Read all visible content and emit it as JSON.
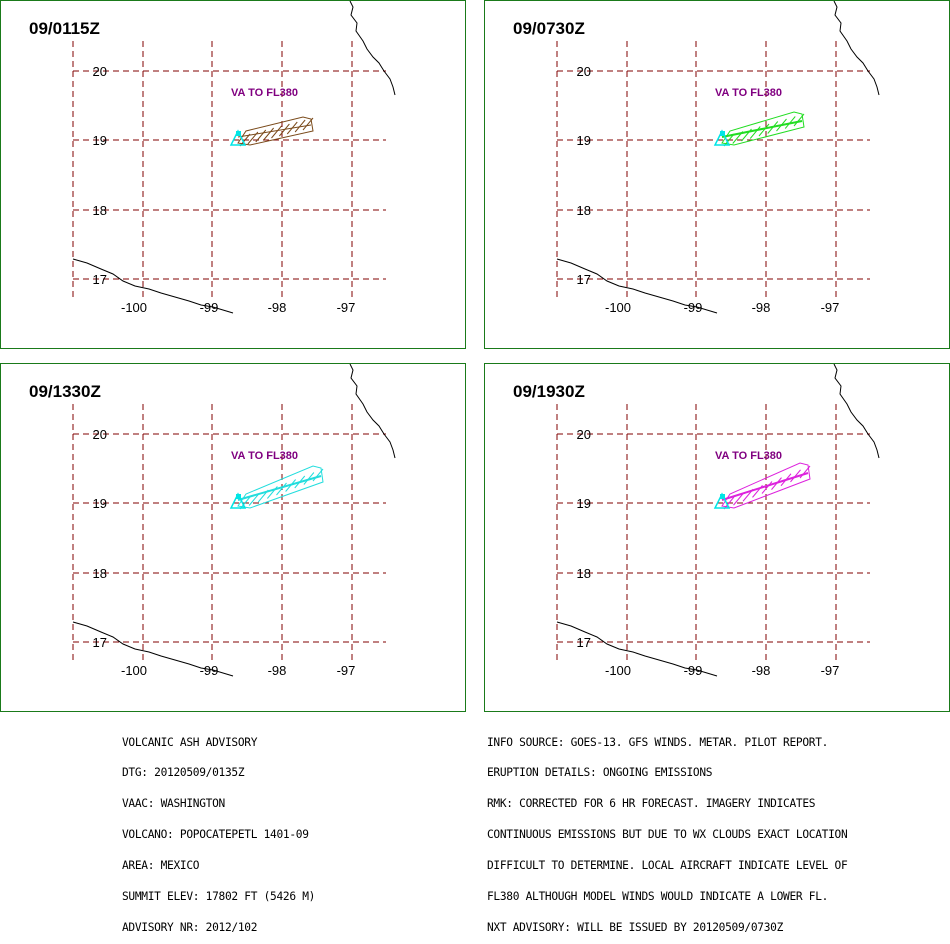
{
  "colors": {
    "frame": "#1a7a1a",
    "grid": "#800000",
    "coast": "#000000",
    "label_va": "#800080",
    "volcano": "#00e5e5"
  },
  "axes": {
    "lat_labels": [
      "20",
      "19",
      "18",
      "17"
    ],
    "lon_labels": [
      "-100",
      "-99",
      "-98",
      "-97"
    ]
  },
  "panels": [
    {
      "time": "09/0115Z",
      "label": "VA TO FL380",
      "plume_color": "#7a4a1a"
    },
    {
      "time": "09/0730Z",
      "label": "VA TO FL380",
      "plume_color": "#22dd22"
    },
    {
      "time": "09/1330Z",
      "label": "VA TO FL380",
      "plume_color": "#22dddd"
    },
    {
      "time": "09/1930Z",
      "label": "VA TO FL380",
      "plume_color": "#dd22dd"
    }
  ],
  "advisory_left": [
    "VOLCANIC ASH ADVISORY",
    "DTG: 20120509/0135Z",
    "VAAC: WASHINGTON",
    "VOLCANO: POPOCATEPETL 1401-09",
    "AREA: MEXICO",
    "SUMMIT ELEV: 17802 FT (5426 M)",
    "ADVISORY NR: 2012/102"
  ],
  "advisory_right": [
    "INFO SOURCE: GOES-13. GFS WINDS. METAR. PILOT REPORT.",
    "ERUPTION DETAILS: ONGOING EMISSIONS",
    "RMK: CORRECTED FOR 6 HR FORECAST. IMAGERY INDICATES",
    "CONTINUOUS EMISSIONS BUT DUE TO WX CLOUDS EXACT LOCATION",
    "DIFFICULT TO DETERMINE. LOCAL AIRCRAFT INDICATE LEVEL OF",
    "FL380 ALTHOUGH MODEL WINDS WOULD INDICATE A LOWER FL.",
    "NXT ADVISORY: WILL BE ISSUED BY 20120509/0730Z"
  ]
}
